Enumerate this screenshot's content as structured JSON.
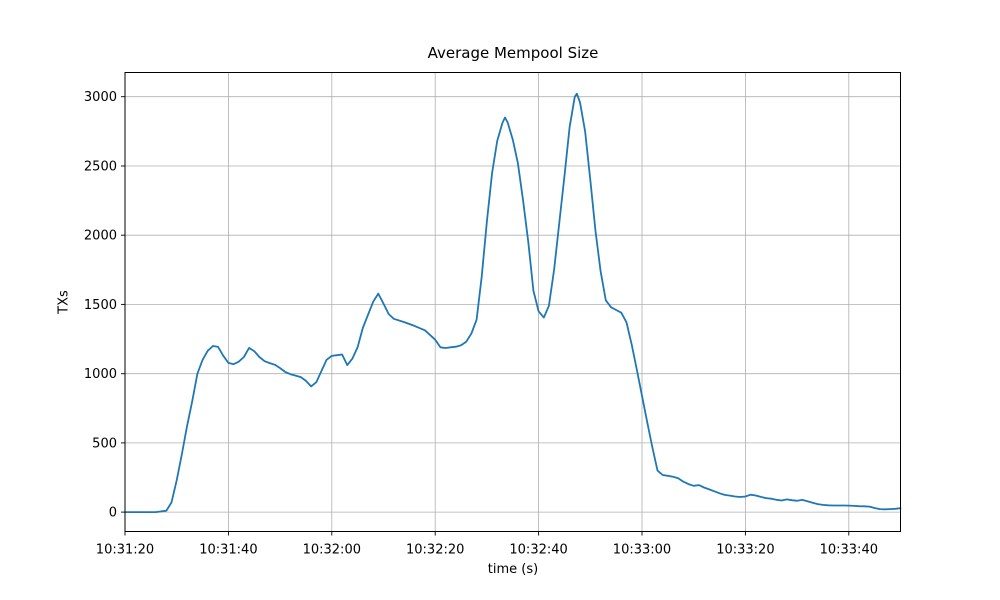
{
  "figure": {
    "title": "Average Mempool Size",
    "xlabel": "time (s)",
    "ylabel": "TXs"
  },
  "chart_data": {
    "type": "line",
    "title": "Average Mempool Size",
    "xlabel": "time (s)",
    "ylabel": "TXs",
    "legend": "none",
    "grid": true,
    "x_unit": "seconds since 10:31:20",
    "xlim": [
      0,
      150
    ],
    "ylim": [
      -140,
      3175
    ],
    "yticks": [
      0,
      500,
      1000,
      1500,
      2000,
      2500,
      3000
    ],
    "xticks": [
      {
        "t": 0,
        "label": "10:31:20"
      },
      {
        "t": 20,
        "label": "10:31:40"
      },
      {
        "t": 40,
        "label": "10:32:00"
      },
      {
        "t": 60,
        "label": "10:32:20"
      },
      {
        "t": 80,
        "label": "10:32:40"
      },
      {
        "t": 100,
        "label": "10:33:00"
      },
      {
        "t": 120,
        "label": "10:33:20"
      },
      {
        "t": 140,
        "label": "10:33:40"
      }
    ],
    "colors": {
      "line": "#1f77b4",
      "grid": "#b0b0b0",
      "axes": "#000000",
      "background": "#ffffff"
    },
    "series": [
      {
        "name": "average mempool size",
        "color": "#1f77b4",
        "points": [
          [
            0,
            0
          ],
          [
            2,
            0
          ],
          [
            4,
            0
          ],
          [
            6,
            0
          ],
          [
            8,
            10
          ],
          [
            9,
            70
          ],
          [
            10,
            230
          ],
          [
            11,
            420
          ],
          [
            12,
            620
          ],
          [
            13,
            800
          ],
          [
            14,
            1000
          ],
          [
            15,
            1100
          ],
          [
            16,
            1165
          ],
          [
            17,
            1200
          ],
          [
            18,
            1193
          ],
          [
            19,
            1130
          ],
          [
            20,
            1078
          ],
          [
            21,
            1068
          ],
          [
            22,
            1086
          ],
          [
            23,
            1120
          ],
          [
            24,
            1186
          ],
          [
            25,
            1162
          ],
          [
            26,
            1120
          ],
          [
            27,
            1090
          ],
          [
            28,
            1076
          ],
          [
            29,
            1064
          ],
          [
            30,
            1040
          ],
          [
            31,
            1012
          ],
          [
            32,
            996
          ],
          [
            33,
            986
          ],
          [
            34,
            975
          ],
          [
            35,
            948
          ],
          [
            36,
            908
          ],
          [
            37,
            938
          ],
          [
            38,
            1020
          ],
          [
            39,
            1100
          ],
          [
            40,
            1128
          ],
          [
            41,
            1133
          ],
          [
            42,
            1138
          ],
          [
            43,
            1062
          ],
          [
            44,
            1110
          ],
          [
            45,
            1190
          ],
          [
            46,
            1330
          ],
          [
            47,
            1425
          ],
          [
            48,
            1520
          ],
          [
            49,
            1578
          ],
          [
            50,
            1505
          ],
          [
            51,
            1430
          ],
          [
            52,
            1396
          ],
          [
            54,
            1372
          ],
          [
            56,
            1345
          ],
          [
            58,
            1313
          ],
          [
            60,
            1245
          ],
          [
            61,
            1190
          ],
          [
            62,
            1185
          ],
          [
            63,
            1190
          ],
          [
            64,
            1195
          ],
          [
            65,
            1205
          ],
          [
            66,
            1230
          ],
          [
            67,
            1290
          ],
          [
            68,
            1390
          ],
          [
            69,
            1700
          ],
          [
            70,
            2100
          ],
          [
            71,
            2450
          ],
          [
            72,
            2680
          ],
          [
            73,
            2810
          ],
          [
            73.5,
            2850
          ],
          [
            74,
            2815
          ],
          [
            75,
            2690
          ],
          [
            76,
            2520
          ],
          [
            77,
            2250
          ],
          [
            78,
            1950
          ],
          [
            79,
            1600
          ],
          [
            80,
            1450
          ],
          [
            81,
            1405
          ],
          [
            82,
            1490
          ],
          [
            83,
            1750
          ],
          [
            84,
            2090
          ],
          [
            85,
            2430
          ],
          [
            86,
            2780
          ],
          [
            87,
            3000
          ],
          [
            87.4,
            3022
          ],
          [
            88,
            2960
          ],
          [
            89,
            2750
          ],
          [
            90,
            2400
          ],
          [
            91,
            2030
          ],
          [
            92,
            1740
          ],
          [
            93,
            1530
          ],
          [
            94,
            1480
          ],
          [
            95,
            1460
          ],
          [
            96,
            1440
          ],
          [
            97,
            1370
          ],
          [
            98,
            1210
          ],
          [
            99,
            1030
          ],
          [
            100,
            840
          ],
          [
            101,
            650
          ],
          [
            102,
            470
          ],
          [
            103,
            300
          ],
          [
            104,
            268
          ],
          [
            105,
            262
          ],
          [
            106,
            255
          ],
          [
            107,
            245
          ],
          [
            108,
            220
          ],
          [
            109,
            202
          ],
          [
            110,
            190
          ],
          [
            111,
            195
          ],
          [
            112,
            178
          ],
          [
            113,
            164
          ],
          [
            114,
            150
          ],
          [
            115,
            136
          ],
          [
            116,
            124
          ],
          [
            117,
            119
          ],
          [
            118,
            113
          ],
          [
            119,
            109
          ],
          [
            120,
            113
          ],
          [
            121,
            126
          ],
          [
            122,
            120
          ],
          [
            123,
            110
          ],
          [
            124,
            101
          ],
          [
            125,
            97
          ],
          [
            126,
            89
          ],
          [
            127,
            84
          ],
          [
            128,
            92
          ],
          [
            129,
            86
          ],
          [
            130,
            82
          ],
          [
            131,
            88
          ],
          [
            132,
            78
          ],
          [
            133,
            68
          ],
          [
            134,
            58
          ],
          [
            135,
            52
          ],
          [
            136,
            49
          ],
          [
            137,
            48
          ],
          [
            138,
            48
          ],
          [
            139,
            48
          ],
          [
            140,
            47
          ],
          [
            141,
            45
          ],
          [
            142,
            43
          ],
          [
            143,
            42
          ],
          [
            144,
            40
          ],
          [
            145,
            30
          ],
          [
            146,
            22
          ],
          [
            147,
            20
          ],
          [
            148,
            22
          ],
          [
            149,
            24
          ],
          [
            150,
            28
          ]
        ]
      }
    ]
  }
}
